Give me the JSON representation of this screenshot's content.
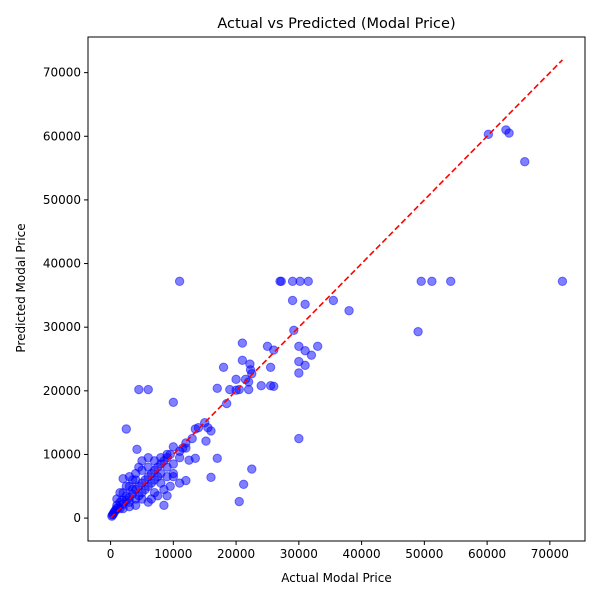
{
  "chart_data": {
    "type": "scatter",
    "title": "Actual vs Predicted (Modal Price)",
    "xlabel": "Actual Modal Price",
    "ylabel": "Predicted Modal Price",
    "xlim": [
      -3600,
      75600
    ],
    "ylim": [
      -3600,
      75600
    ],
    "xticks": [
      0,
      10000,
      20000,
      30000,
      40000,
      50000,
      60000,
      70000
    ],
    "yticks": [
      0,
      10000,
      20000,
      30000,
      40000,
      50000,
      60000,
      70000
    ],
    "point_color": "#0000ff",
    "point_opacity": 0.5,
    "reference_line": {
      "from": [
        0,
        0
      ],
      "to": [
        72000,
        72000
      ],
      "color": "#ff0000",
      "style": "dashed"
    },
    "grid": false,
    "series": [
      {
        "points": [
          [
            60200,
            60300
          ],
          [
            63000,
            61000
          ],
          [
            63500,
            60500
          ],
          [
            66000,
            56000
          ],
          [
            49500,
            37200
          ],
          [
            51200,
            37200
          ],
          [
            54200,
            37200
          ],
          [
            72000,
            37200
          ],
          [
            49000,
            29300
          ],
          [
            38000,
            32600
          ],
          [
            35500,
            34200
          ],
          [
            31000,
            33600
          ],
          [
            29000,
            34200
          ],
          [
            29200,
            29500
          ],
          [
            27000,
            37200
          ],
          [
            27200,
            37200
          ],
          [
            29000,
            37200
          ],
          [
            30200,
            37200
          ],
          [
            31500,
            37200
          ],
          [
            11000,
            37200
          ],
          [
            21000,
            27500
          ],
          [
            25000,
            27000
          ],
          [
            26000,
            26400
          ],
          [
            30000,
            27000
          ],
          [
            31000,
            26300
          ],
          [
            32000,
            25600
          ],
          [
            33000,
            27000
          ],
          [
            30000,
            24600
          ],
          [
            31000,
            24000
          ],
          [
            30000,
            22800
          ],
          [
            21000,
            24800
          ],
          [
            22200,
            24200
          ],
          [
            22300,
            23300
          ],
          [
            22500,
            22700
          ],
          [
            25500,
            23700
          ],
          [
            18000,
            23700
          ],
          [
            21500,
            21800
          ],
          [
            22000,
            21400
          ],
          [
            20000,
            21800
          ],
          [
            24000,
            20800
          ],
          [
            25500,
            20800
          ],
          [
            26000,
            20700
          ],
          [
            22000,
            20200
          ],
          [
            20500,
            20200
          ],
          [
            20000,
            20100
          ],
          [
            19000,
            20200
          ],
          [
            17000,
            20400
          ],
          [
            4500,
            20200
          ],
          [
            6000,
            20200
          ],
          [
            10000,
            18200
          ],
          [
            18500,
            18000
          ],
          [
            30000,
            12500
          ],
          [
            2500,
            14000
          ],
          [
            15000,
            15000
          ],
          [
            14000,
            14200
          ],
          [
            13500,
            14000
          ],
          [
            15500,
            14200
          ],
          [
            16000,
            13700
          ],
          [
            15200,
            12100
          ],
          [
            13000,
            12500
          ],
          [
            12000,
            11800
          ],
          [
            11500,
            11000
          ],
          [
            10000,
            11200
          ],
          [
            9000,
            10000
          ],
          [
            8000,
            9500
          ],
          [
            4200,
            10800
          ],
          [
            17000,
            9400
          ],
          [
            13500,
            9400
          ],
          [
            12500,
            9100
          ],
          [
            11000,
            9500
          ],
          [
            16000,
            6400
          ],
          [
            22500,
            7700
          ],
          [
            21200,
            5300
          ],
          [
            20500,
            2600
          ],
          [
            12000,
            5900
          ],
          [
            11000,
            5500
          ],
          [
            10000,
            6500
          ],
          [
            9000,
            3500
          ],
          [
            8500,
            2000
          ],
          [
            7000,
            4000
          ],
          [
            6000,
            2500
          ],
          [
            5000,
            3000
          ],
          [
            4000,
            2000
          ],
          [
            3000,
            2500
          ],
          [
            2500,
            3500
          ],
          [
            2000,
            4000
          ],
          [
            1500,
            2500
          ],
          [
            1000,
            2000
          ],
          [
            800,
            1200
          ],
          [
            500,
            800
          ],
          [
            400,
            600
          ],
          [
            300,
            500
          ],
          [
            1200,
            1600
          ],
          [
            1500,
            1500
          ],
          [
            2000,
            2200
          ],
          [
            2500,
            2800
          ],
          [
            3000,
            3200
          ],
          [
            3500,
            3800
          ],
          [
            4000,
            4500
          ],
          [
            4500,
            5000
          ],
          [
            5000,
            5500
          ],
          [
            5500,
            6000
          ],
          [
            6000,
            6500
          ],
          [
            6500,
            7000
          ],
          [
            7000,
            7500
          ],
          [
            7500,
            8000
          ],
          [
            8000,
            8500
          ],
          [
            8500,
            9000
          ],
          [
            9000,
            9500
          ],
          [
            9500,
            10000
          ],
          [
            3000,
            5000
          ],
          [
            3500,
            6000
          ],
          [
            4000,
            7000
          ],
          [
            4500,
            8000
          ],
          [
            5000,
            9000
          ],
          [
            6000,
            9500
          ],
          [
            2000,
            6200
          ],
          [
            3000,
            6500
          ],
          [
            4000,
            6000
          ],
          [
            5000,
            7500
          ],
          [
            6000,
            8000
          ],
          [
            7000,
            9000
          ],
          [
            8000,
            7000
          ],
          [
            9000,
            8000
          ],
          [
            10000,
            8500
          ],
          [
            11000,
            10500
          ],
          [
            12000,
            11000
          ],
          [
            6000,
            5000
          ],
          [
            7000,
            6000
          ],
          [
            8000,
            5500
          ],
          [
            9000,
            6500
          ],
          [
            10000,
            7000
          ],
          [
            5000,
            4000
          ],
          [
            4000,
            3000
          ],
          [
            3000,
            1800
          ],
          [
            2000,
            1500
          ],
          [
            6500,
            3000
          ],
          [
            7500,
            3500
          ],
          [
            8500,
            4500
          ],
          [
            9500,
            5000
          ],
          [
            1000,
            3000
          ],
          [
            1500,
            4000
          ],
          [
            2500,
            5000
          ],
          [
            3500,
            4500
          ],
          [
            4500,
            3500
          ],
          [
            5500,
            4500
          ],
          [
            6500,
            5500
          ],
          [
            7500,
            6500
          ],
          [
            200,
            300
          ],
          [
            600,
            1000
          ],
          [
            900,
            1500
          ],
          [
            1800,
            2800
          ]
        ]
      }
    ]
  }
}
